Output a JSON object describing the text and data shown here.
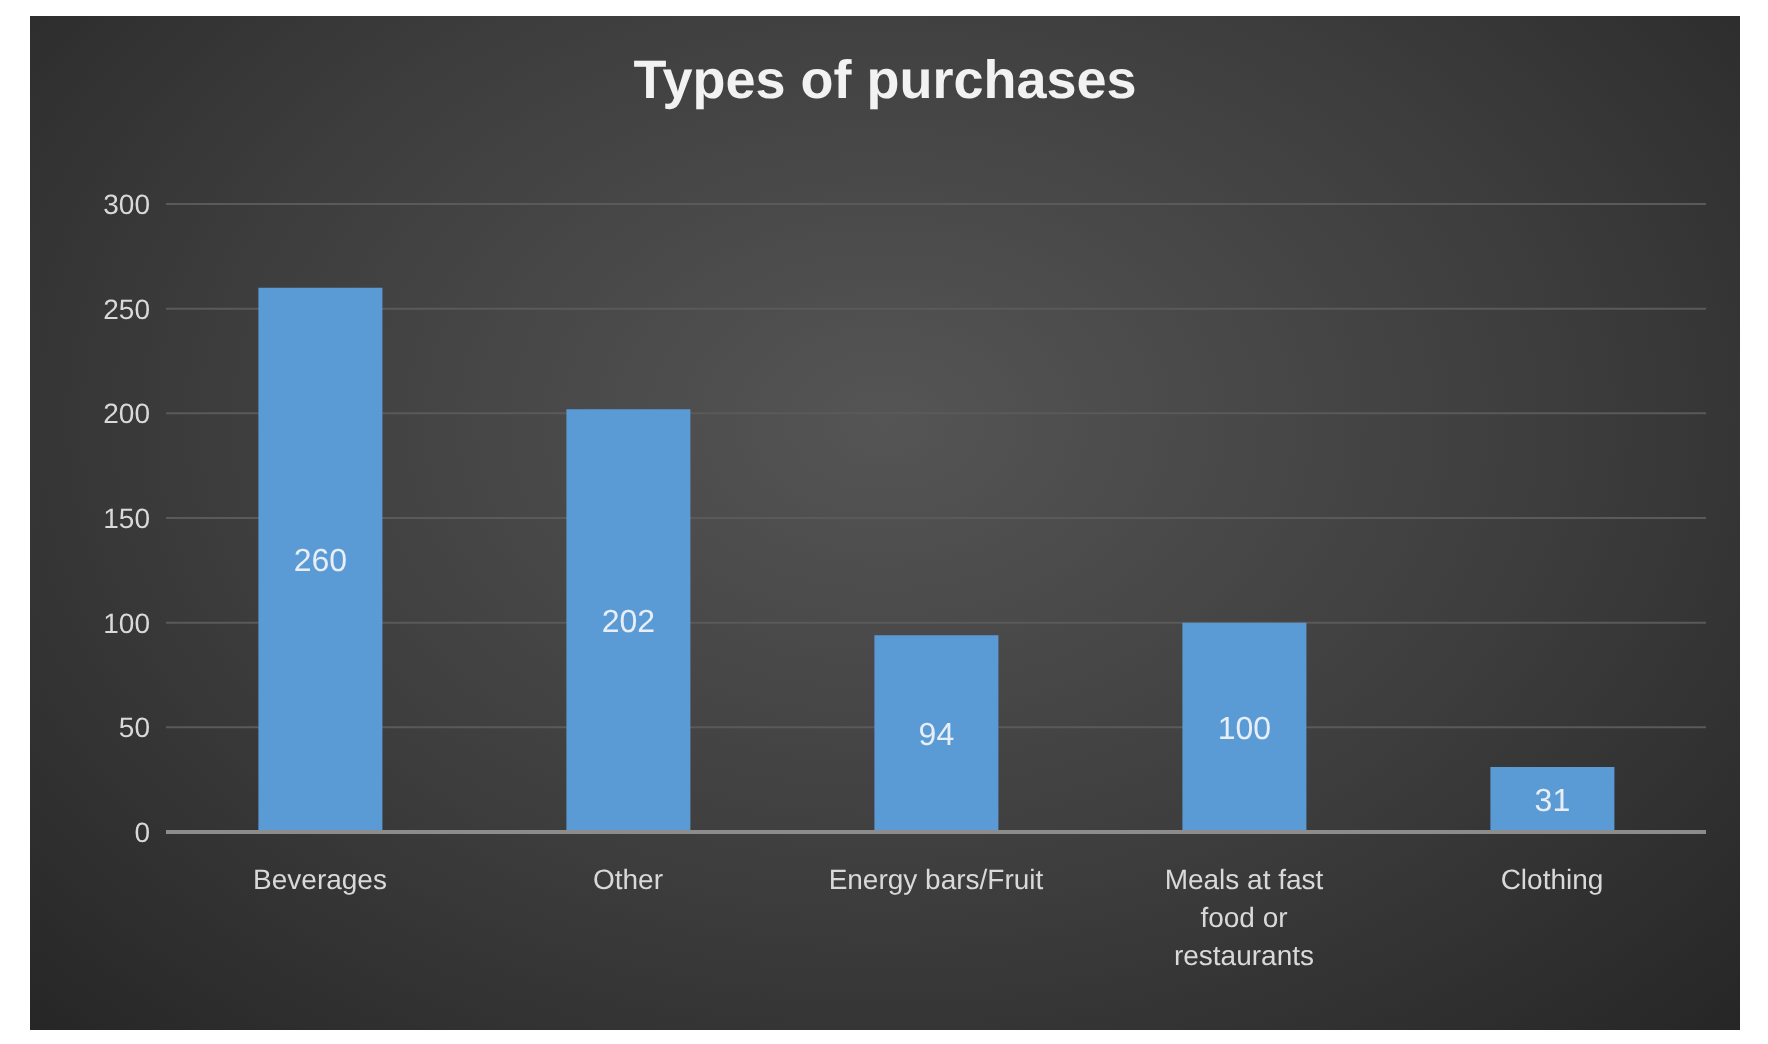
{
  "chart_data": {
    "type": "bar",
    "title": "Types of purchases",
    "categories": [
      "Beverages",
      "Other",
      "Energy bars/Fruit",
      "Meals at fast food or restaurants",
      "Clothing"
    ],
    "values": [
      260,
      202,
      94,
      100,
      31
    ],
    "color": "#5b9bd5",
    "ylim": [
      0,
      300
    ],
    "yticks": [
      0,
      50,
      100,
      150,
      200,
      250,
      300
    ],
    "grid": "y",
    "data_labels": true
  }
}
